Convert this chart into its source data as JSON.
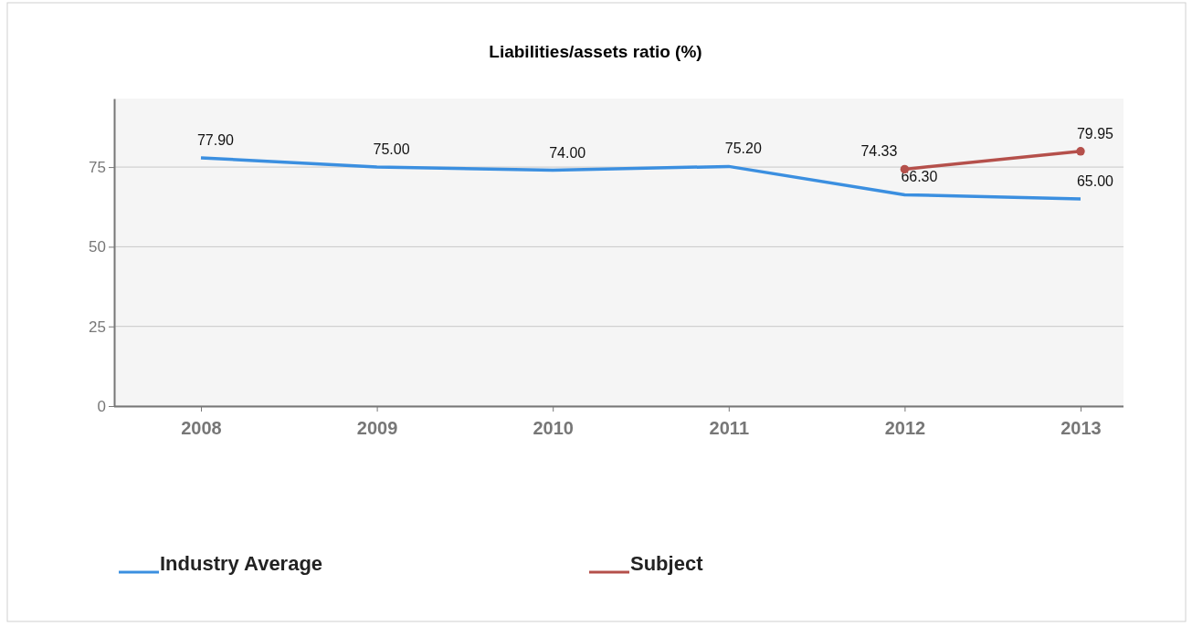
{
  "chart_data": {
    "type": "line",
    "title": "Liabilities/assets ratio (%)",
    "categories": [
      "2008",
      "2009",
      "2010",
      "2011",
      "2012",
      "2013"
    ],
    "series": [
      {
        "name": "Industry Average",
        "color": "#3b8fe0",
        "values": [
          77.9,
          75.0,
          74.0,
          75.2,
          66.3,
          65.0
        ],
        "value_labels": [
          "77.90",
          "75.00",
          "74.00",
          "75.20",
          "66.30",
          "65.00"
        ],
        "marker": "none"
      },
      {
        "name": "Subject",
        "color": "#b5504b",
        "values": [
          null,
          null,
          null,
          null,
          74.33,
          79.95
        ],
        "value_labels": [
          null,
          null,
          null,
          null,
          "74.33",
          "79.95"
        ],
        "marker": "circle"
      }
    ],
    "ylim": [
      0,
      96.5
    ],
    "yticks": [
      0,
      25,
      50,
      75
    ],
    "grid": "y",
    "legend": "bottom",
    "line_style": "solid"
  }
}
